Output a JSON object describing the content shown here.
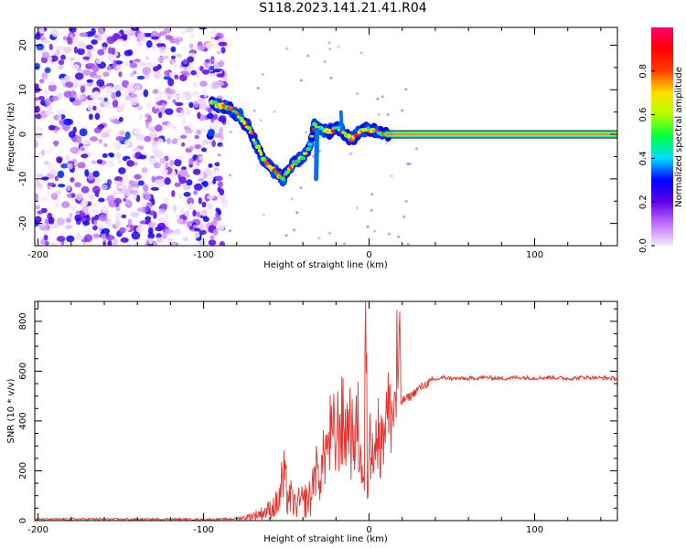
{
  "title": "S118.2023.141.21.41.R04",
  "chart_data": [
    {
      "type": "heatmap",
      "xlabel": "Height of straight line (km)",
      "ylabel": "Frequency (Hz)",
      "xlim": [
        -202,
        150
      ],
      "ylim": [
        -25,
        24
      ],
      "xticks": [
        -200,
        -100,
        0,
        100
      ],
      "yticks": [
        20,
        10,
        0,
        -10,
        -20
      ],
      "grid": false,
      "colorbar": {
        "label": "Normalized spectral amplitude",
        "range": [
          0,
          1
        ],
        "ticks": [
          0.0,
          0.2,
          0.4,
          0.6,
          0.8
        ],
        "tick_labels": [
          "0.0",
          "0.2",
          "0.4",
          "0.6",
          "0.8"
        ],
        "colors": [
          "#f4eafd",
          "#c070ff",
          "#6000e6",
          "#0000ff",
          "#00dcff",
          "#00ff40",
          "#b0ff00",
          "#ffe000",
          "#ff4000",
          "#ff0000",
          "#ff0070"
        ]
      },
      "ridge": {
        "x": [
          -95,
          -85,
          -78,
          -72,
          -65,
          -58,
          -52,
          -47,
          -44,
          -40,
          -36,
          -33,
          -28,
          -24,
          -20,
          -17,
          -14,
          -10,
          -6,
          -2,
          2,
          6,
          10,
          150
        ],
        "y": [
          7,
          6,
          4,
          1,
          -5,
          -8,
          -10,
          -7,
          -6,
          -5,
          -3,
          2,
          1,
          0.5,
          1.5,
          1.2,
          -0.5,
          -1,
          0.5,
          1,
          1,
          0.5,
          0,
          0
        ]
      },
      "noise_region_x": [
        -202,
        -95
      ]
    },
    {
      "type": "line",
      "xlabel": "Height of straight line (km)",
      "ylabel": "SNR (10 * v/v)",
      "xlim": [
        -202,
        150
      ],
      "ylim": [
        0,
        880
      ],
      "xticks": [
        -200,
        -100,
        0,
        100
      ],
      "yticks": [
        0,
        200,
        400,
        600,
        800
      ],
      "grid": false,
      "color": "#e8322e",
      "x": [
        -202,
        -180,
        -160,
        -140,
        -120,
        -100,
        -90,
        -80,
        -75,
        -70,
        -65,
        -60,
        -55,
        -52,
        -50,
        -45,
        -40,
        -35,
        -33,
        -30,
        -27,
        -25,
        -22,
        -20,
        -18,
        -15,
        -12,
        -10,
        -8,
        -5,
        -3,
        -2,
        -1,
        0,
        2,
        5,
        8,
        10,
        13,
        15,
        17,
        20,
        25,
        30,
        35,
        40,
        45,
        50,
        60,
        70,
        80,
        90,
        100,
        110,
        120,
        130,
        140,
        150
      ],
      "y": [
        5,
        6,
        6,
        5,
        6,
        5,
        5,
        8,
        12,
        20,
        30,
        45,
        70,
        160,
        120,
        60,
        80,
        90,
        220,
        160,
        260,
        320,
        350,
        300,
        410,
        360,
        380,
        320,
        430,
        280,
        120,
        880,
        90,
        280,
        350,
        330,
        410,
        420,
        400,
        460,
        610,
        480,
        500,
        530,
        550,
        565,
        575,
        570,
        570,
        575,
        570,
        575,
        572,
        575,
        570,
        575,
        573,
        570
      ]
    }
  ]
}
